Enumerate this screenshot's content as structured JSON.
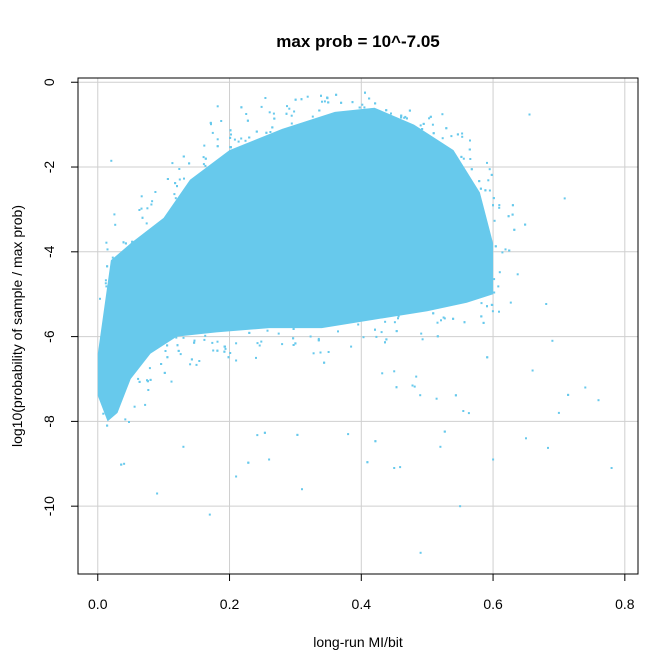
{
  "chart_data": {
    "type": "scatter",
    "title": "max prob = 10^-7.05",
    "xlabel": "long-run MI/bit",
    "ylabel": "log10(probability of sample / max prob)",
    "xlim": [
      -0.03,
      0.82
    ],
    "ylim": [
      -11.6,
      0.1
    ],
    "xticks": [
      0.0,
      0.2,
      0.4,
      0.6,
      0.8
    ],
    "xtick_labels": [
      "0.0",
      "0.2",
      "0.4",
      "0.6",
      "0.8"
    ],
    "yticks": [
      0,
      -2,
      -4,
      -6,
      -8,
      -10
    ],
    "ytick_labels": [
      "0",
      "-2",
      "-4",
      "-6",
      "-8",
      "-10"
    ],
    "grid": true,
    "point_color": "#67c9ec",
    "dense_region": {
      "description_points": [
        [
          0.0,
          -6.4
        ],
        [
          0.02,
          -4.2
        ],
        [
          0.05,
          -3.8
        ],
        [
          0.1,
          -3.2
        ],
        [
          0.14,
          -2.3
        ],
        [
          0.2,
          -1.6
        ],
        [
          0.28,
          -1.1
        ],
        [
          0.36,
          -0.7
        ],
        [
          0.42,
          -0.6
        ],
        [
          0.48,
          -1.0
        ],
        [
          0.54,
          -1.6
        ],
        [
          0.58,
          -2.6
        ],
        [
          0.6,
          -3.8
        ],
        [
          0.6,
          -5.0
        ],
        [
          0.56,
          -5.2
        ],
        [
          0.5,
          -5.4
        ],
        [
          0.42,
          -5.6
        ],
        [
          0.34,
          -5.8
        ],
        [
          0.26,
          -5.8
        ],
        [
          0.18,
          -5.9
        ],
        [
          0.12,
          -6.0
        ],
        [
          0.08,
          -6.4
        ],
        [
          0.05,
          -7.0
        ],
        [
          0.03,
          -7.8
        ],
        [
          0.015,
          -8.0
        ],
        [
          0.0,
          -7.4
        ]
      ]
    },
    "outliers": [
      {
        "x": 0.17,
        "y": -10.2
      },
      {
        "x": 0.21,
        "y": -9.3
      },
      {
        "x": 0.31,
        "y": -9.6
      },
      {
        "x": 0.45,
        "y": -9.1
      },
      {
        "x": 0.49,
        "y": -11.1
      },
      {
        "x": 0.55,
        "y": -10.0
      },
      {
        "x": 0.6,
        "y": -8.9
      },
      {
        "x": 0.65,
        "y": -8.4
      },
      {
        "x": 0.7,
        "y": -7.8
      },
      {
        "x": 0.74,
        "y": -7.2
      },
      {
        "x": 0.76,
        "y": -7.5
      },
      {
        "x": 0.78,
        "y": -9.1
      },
      {
        "x": 0.09,
        "y": -9.7
      },
      {
        "x": 0.13,
        "y": -8.6
      },
      {
        "x": 0.26,
        "y": -8.9
      },
      {
        "x": 0.38,
        "y": -8.3
      },
      {
        "x": 0.52,
        "y": -8.6
      },
      {
        "x": 0.66,
        "y": -6.8
      },
      {
        "x": 0.69,
        "y": -6.1
      },
      {
        "x": 0.04,
        "y": -9.0
      }
    ]
  }
}
